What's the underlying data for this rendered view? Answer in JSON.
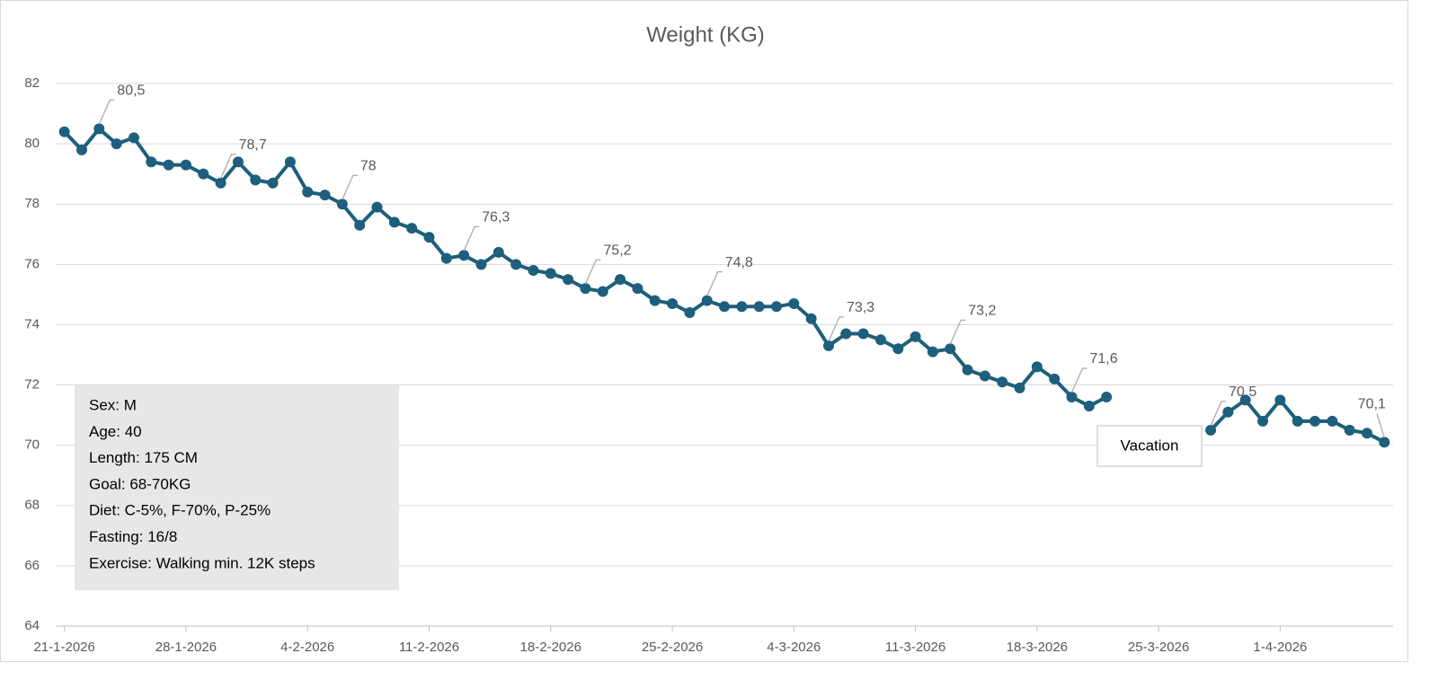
{
  "chart_data": {
    "type": "line",
    "title": "Weight (KG)",
    "x": [
      "21-1-2026",
      "22-1-2026",
      "23-1-2026",
      "24-1-2026",
      "25-1-2026",
      "26-1-2026",
      "27-1-2026",
      "28-1-2026",
      "29-1-2026",
      "30-1-2026",
      "31-1-2026",
      "1-2-2026",
      "2-2-2026",
      "3-2-2026",
      "4-2-2026",
      "5-2-2026",
      "6-2-2026",
      "7-2-2026",
      "8-2-2026",
      "9-2-2026",
      "10-2-2026",
      "11-2-2026",
      "12-2-2026",
      "13-2-2026",
      "14-2-2026",
      "15-2-2026",
      "16-2-2026",
      "17-2-2026",
      "18-2-2026",
      "19-2-2026",
      "20-2-2026",
      "21-2-2026",
      "22-2-2026",
      "23-2-2026",
      "24-2-2026",
      "25-2-2026",
      "26-2-2026",
      "27-2-2026",
      "28-2-2026",
      "1-3-2026",
      "2-3-2026",
      "3-3-2026",
      "4-3-2026",
      "5-3-2026",
      "6-3-2026",
      "7-3-2026",
      "8-3-2026",
      "9-3-2026",
      "10-3-2026",
      "11-3-2026",
      "12-3-2026",
      "13-3-2026",
      "14-3-2026",
      "15-3-2026",
      "16-3-2026",
      "17-3-2026",
      "18-3-2026",
      "19-3-2026",
      "20-3-2026",
      "21-3-2026",
      "22-3-2026",
      "23-3-2026",
      "24-3-2026",
      "25-3-2026",
      "26-3-2026",
      "27-3-2026",
      "28-3-2026",
      "29-3-2026",
      "30-3-2026",
      "31-3-2026",
      "1-4-2026",
      "2-4-2026",
      "3-4-2026",
      "4-4-2026",
      "5-4-2026",
      "6-4-2026",
      "7-4-2026"
    ],
    "values": [
      80.4,
      79.8,
      80.5,
      80.0,
      80.2,
      79.4,
      79.3,
      79.3,
      79.0,
      78.7,
      79.4,
      78.8,
      78.7,
      79.4,
      78.4,
      78.3,
      78.0,
      77.3,
      77.9,
      77.4,
      77.2,
      76.9,
      76.2,
      76.3,
      76.0,
      76.4,
      76.0,
      75.8,
      75.7,
      75.5,
      75.2,
      75.1,
      75.5,
      75.2,
      74.8,
      74.7,
      74.4,
      74.8,
      74.6,
      74.6,
      74.6,
      74.6,
      74.7,
      74.2,
      73.3,
      73.7,
      73.7,
      73.5,
      73.2,
      73.6,
      73.1,
      73.2,
      72.5,
      72.3,
      72.1,
      71.9,
      72.6,
      72.2,
      71.6,
      71.3,
      71.6,
      null,
      null,
      null,
      null,
      null,
      70.5,
      71.1,
      71.5,
      70.8,
      71.5,
      70.8,
      70.8,
      70.8,
      70.5,
      70.4,
      70.1
    ],
    "value_labels": [
      null,
      null,
      "80,5",
      null,
      null,
      null,
      null,
      null,
      null,
      "78,7",
      null,
      null,
      null,
      null,
      null,
      null,
      "78",
      null,
      null,
      null,
      null,
      null,
      null,
      "76,3",
      null,
      null,
      null,
      null,
      null,
      null,
      "75,2",
      null,
      null,
      null,
      null,
      null,
      null,
      "74,8",
      null,
      null,
      null,
      null,
      null,
      null,
      "73,3",
      null,
      null,
      null,
      null,
      null,
      null,
      "73,2",
      null,
      null,
      null,
      null,
      null,
      null,
      "71,6",
      null,
      null,
      null,
      null,
      null,
      null,
      null,
      "70,5",
      null,
      null,
      null,
      null,
      null,
      null,
      null,
      null,
      null,
      "70,1"
    ],
    "color": "#1d5f7c",
    "xlim": [
      "21-1-2026",
      "7-4-2026"
    ],
    "xticks": [
      "21-1-2026",
      "28-1-2026",
      "4-2-2026",
      "11-2-2026",
      "18-2-2026",
      "25-2-2026",
      "4-3-2026",
      "11-3-2026",
      "18-3-2026",
      "25-3-2026",
      "1-4-2026"
    ],
    "ylim": [
      64,
      82
    ],
    "yticks": [
      64,
      66,
      68,
      70,
      72,
      74,
      76,
      78,
      80,
      82
    ],
    "grid": true,
    "annotations": {
      "info": [
        "Sex: M",
        "Age: 40",
        "Length: 175 CM",
        "Goal: 68-70KG",
        "Diet:  C-5%, F-70%, P-25%",
        "Fasting: 16/8",
        "Exercise: Walking min. 12K steps"
      ],
      "gap_label": "Vacation"
    }
  }
}
